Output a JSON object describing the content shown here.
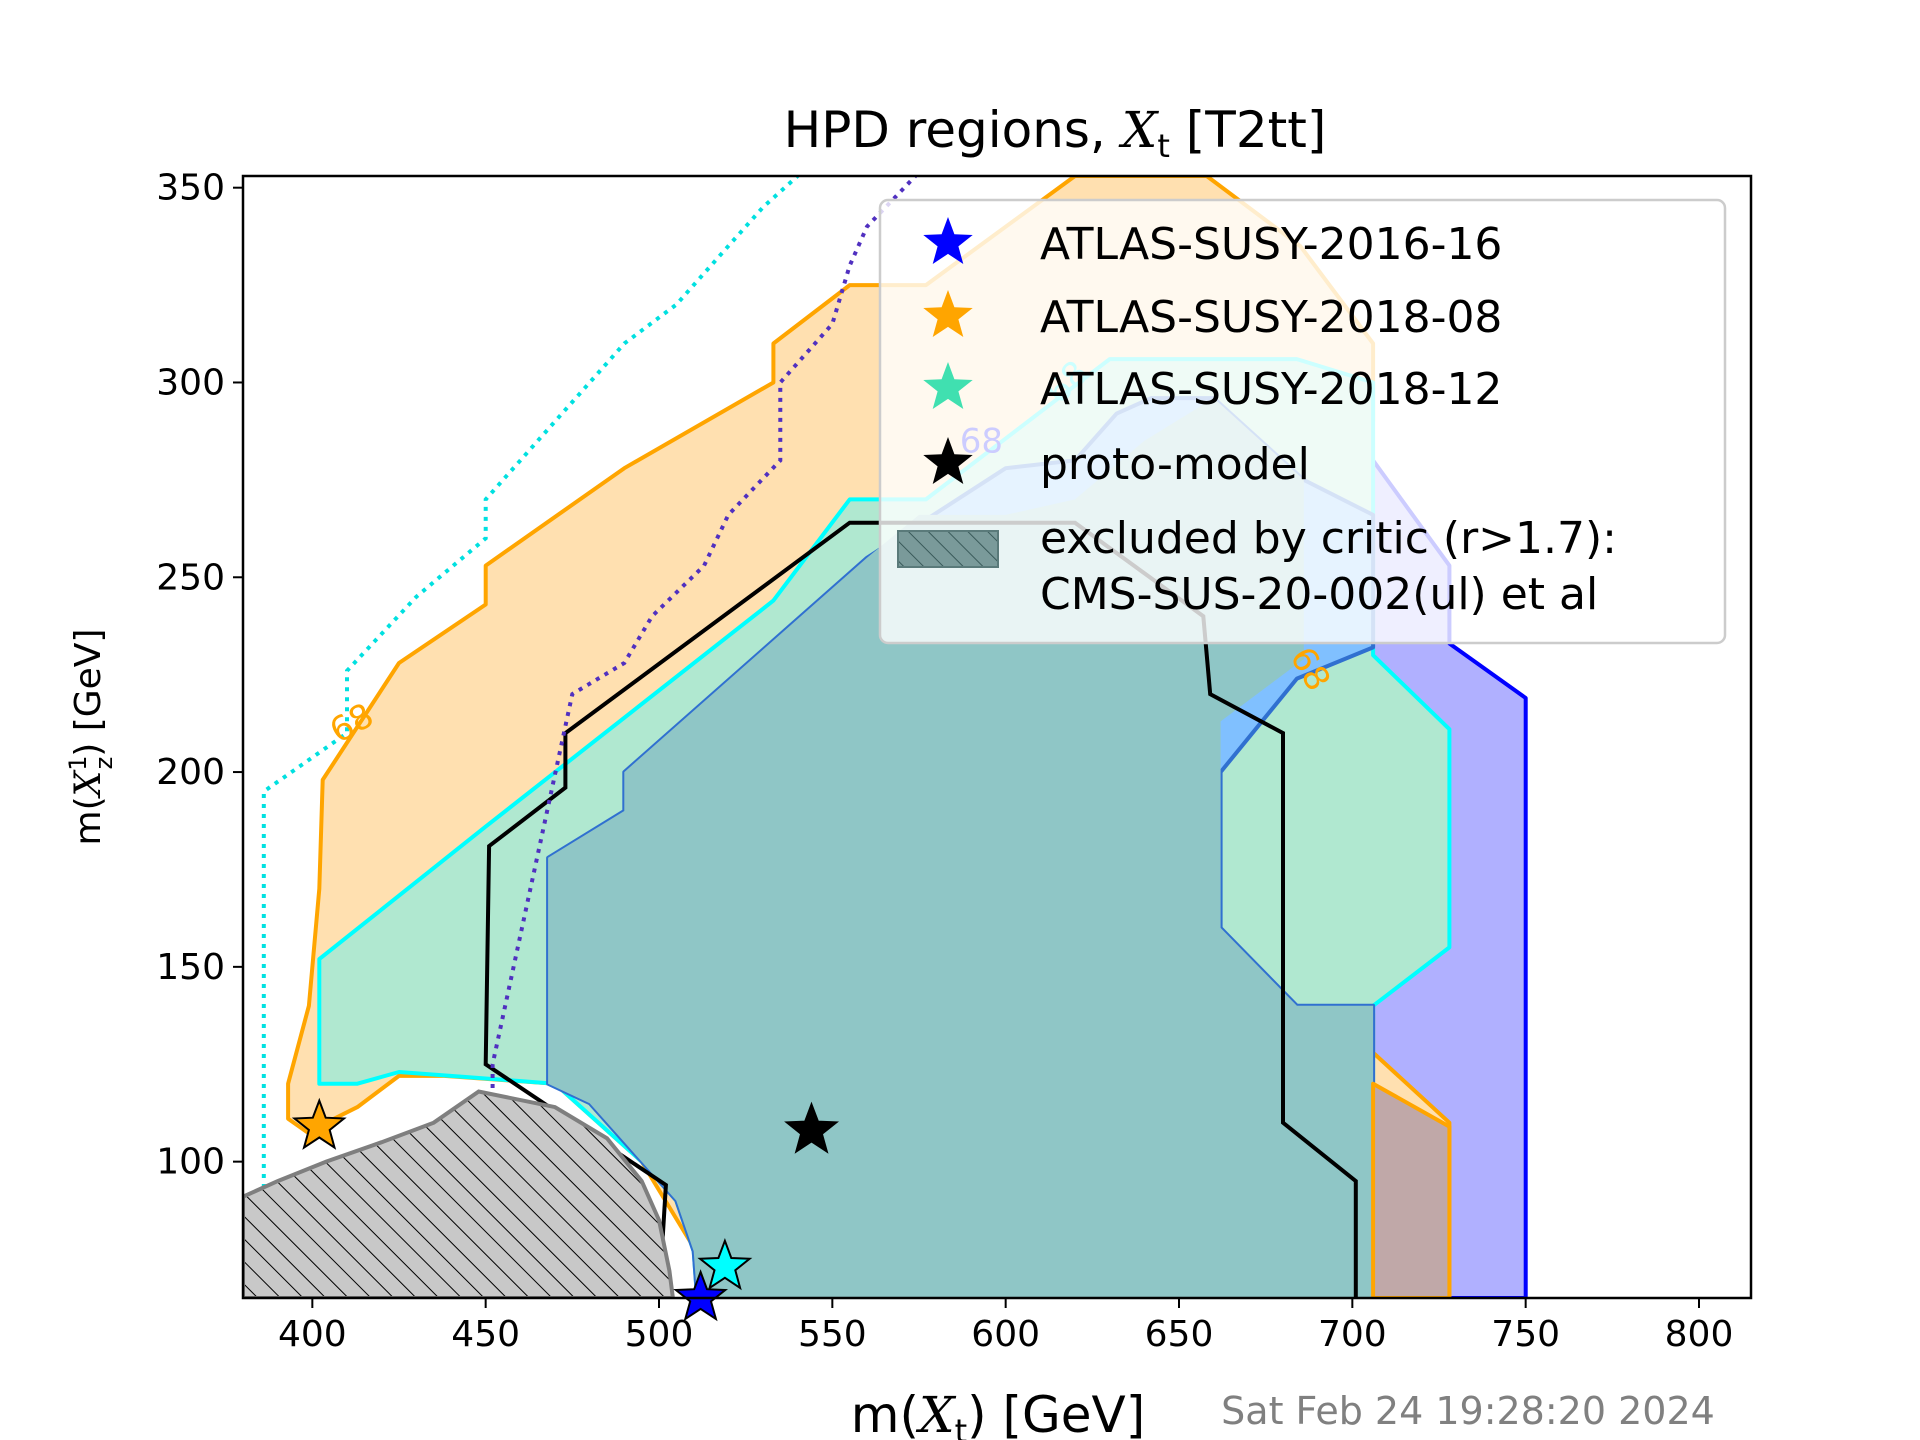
{
  "chart_data": {
    "type": "contour",
    "title": "HPD regions, X_t [T2tt]",
    "title_parts": {
      "pre": "HPD regions, ",
      "italic": "X",
      "sub": "t",
      "post": " [T2tt]"
    },
    "xlabel": "m(X_t) [GeV]",
    "xlabel_parts": {
      "pre": "m(",
      "italic": "X",
      "sub": "t",
      "post": ") [GeV]"
    },
    "ylabel": "m(X_z^1) [GeV]",
    "ylabel_parts": {
      "pre": "m(",
      "italic": "X",
      "sub": "z",
      "sup": "1",
      "post": ") [GeV]"
    },
    "xlim": [
      380,
      815
    ],
    "ylim": [
      65,
      353
    ],
    "xticks": [
      "400",
      "450",
      "500",
      "550",
      "600",
      "650",
      "700",
      "750",
      "800"
    ],
    "yticks": [
      "100",
      "150",
      "200",
      "250",
      "300",
      "350"
    ],
    "timestamp": "Sat Feb 24 19:28:20 2024",
    "contour_level_label": "68",
    "legend": {
      "position": "upper right",
      "entries": [
        {
          "label": "ATLAS-SUSY-2016-16",
          "marker": "star",
          "color": "#0000ff"
        },
        {
          "label": "ATLAS-SUSY-2018-08",
          "marker": "star",
          "color": "#ffa500"
        },
        {
          "label": "ATLAS-SUSY-2018-12",
          "marker": "star",
          "color": "#40e0b0"
        },
        {
          "label": "proto-model",
          "marker": "star",
          "color": "#000000"
        },
        {
          "label": "excluded by critic (r>1.7):",
          "label2": "CMS-SUS-20-002(ul) et al",
          "marker": "hatch",
          "color": "#7a9a9a"
        }
      ]
    },
    "series": [
      {
        "kind": "region",
        "fill": "#b0b0ff",
        "stroke": "#0000ff",
        "points": [
          [
            620,
            280
          ],
          [
            660,
            295
          ],
          [
            690,
            285
          ],
          [
            706,
            280
          ],
          [
            728,
            253
          ],
          [
            728,
            233
          ],
          [
            750,
            219
          ],
          [
            750,
            65
          ],
          [
            706,
            65
          ],
          [
            706,
            120
          ],
          [
            590,
            170
          ],
          [
            470,
            180
          ],
          [
            470,
            215
          ],
          [
            620,
            280
          ]
        ]
      },
      {
        "kind": "region",
        "fill": "#ffe0b0",
        "stroke": "#ffa500",
        "points": [
          [
            393,
            111
          ],
          [
            401,
            106
          ],
          [
            404,
            110
          ],
          [
            413,
            114
          ],
          [
            425,
            122
          ],
          [
            438,
            122
          ],
          [
            470,
            120
          ],
          [
            495,
            100
          ],
          [
            510,
            78
          ],
          [
            520,
            75
          ],
          [
            520,
            65
          ],
          [
            728,
            65
          ],
          [
            728,
            110
          ],
          [
            706,
            128
          ],
          [
            706,
            138
          ],
          [
            684,
            140
          ],
          [
            662,
            160
          ],
          [
            662,
            213
          ],
          [
            684,
            229
          ],
          [
            684,
            280
          ],
          [
            706,
            290
          ],
          [
            706,
            310
          ],
          [
            685,
            335
          ],
          [
            658,
            353
          ],
          [
            620,
            353
          ],
          [
            577,
            325
          ],
          [
            555,
            325
          ],
          [
            533,
            310
          ],
          [
            533,
            300
          ],
          [
            490,
            278
          ],
          [
            450,
            253
          ],
          [
            450,
            243
          ],
          [
            425,
            228
          ],
          [
            403,
            198
          ],
          [
            402,
            170
          ],
          [
            399,
            140
          ],
          [
            393,
            120
          ]
        ]
      },
      {
        "kind": "region",
        "fill": "#b0e8d0",
        "stroke": "#00ffff",
        "points": [
          [
            402,
            120
          ],
          [
            402,
            152
          ],
          [
            450,
            186
          ],
          [
            533,
            244
          ],
          [
            555,
            270
          ],
          [
            577,
            270
          ],
          [
            630,
            306
          ],
          [
            684,
            306
          ],
          [
            706,
            300
          ],
          [
            706,
            230
          ],
          [
            728,
            211
          ],
          [
            728,
            155
          ],
          [
            706,
            140
          ],
          [
            706,
            65
          ],
          [
            511,
            65
          ],
          [
            510,
            77
          ],
          [
            505,
            90
          ],
          [
            495,
            100
          ],
          [
            470,
            120
          ],
          [
            425,
            123
          ],
          [
            413,
            120
          ]
        ]
      },
      {
        "kind": "region",
        "fill": "#80c0ff",
        "stroke": "#3070d0",
        "points": [
          [
            468,
            120
          ],
          [
            468,
            178
          ],
          [
            490,
            190
          ],
          [
            490,
            200
          ],
          [
            560,
            255
          ],
          [
            600,
            278
          ],
          [
            620,
            280
          ],
          [
            632,
            292
          ],
          [
            642,
            296
          ],
          [
            660,
            296
          ],
          [
            686,
            275
          ],
          [
            706,
            266
          ],
          [
            706,
            232
          ],
          [
            684,
            224
          ],
          [
            662,
            200
          ],
          [
            662,
            160
          ],
          [
            684,
            140
          ],
          [
            706,
            140
          ],
          [
            706,
            65
          ],
          [
            511,
            65
          ],
          [
            510,
            77
          ],
          [
            505,
            90
          ],
          [
            495,
            100
          ],
          [
            480,
            115
          ]
        ]
      },
      {
        "kind": "region",
        "fill": "#8fc6c6",
        "stroke": "none",
        "points": [
          [
            468,
            120
          ],
          [
            468,
            178
          ],
          [
            490,
            190
          ],
          [
            490,
            200
          ],
          [
            560,
            255
          ],
          [
            575,
            266
          ],
          [
            600,
            266
          ],
          [
            620,
            270
          ],
          [
            640,
            285
          ],
          [
            660,
            296
          ],
          [
            686,
            275
          ],
          [
            686,
            229
          ],
          [
            662,
            213
          ],
          [
            662,
            160
          ],
          [
            684,
            140
          ],
          [
            706,
            140
          ],
          [
            706,
            65
          ],
          [
            511,
            65
          ],
          [
            510,
            77
          ],
          [
            505,
            90
          ],
          [
            495,
            100
          ],
          [
            480,
            115
          ]
        ]
      },
      {
        "kind": "region",
        "fill": "#c0a8a8",
        "stroke": "#ffa500",
        "points": [
          [
            706,
            120
          ],
          [
            728,
            109
          ],
          [
            728,
            65
          ],
          [
            706,
            65
          ]
        ]
      },
      {
        "kind": "line",
        "stroke": "#000000",
        "width": 4,
        "points": [
          [
            500,
            65
          ],
          [
            502,
            94
          ],
          [
            450,
            125
          ],
          [
            451,
            181
          ],
          [
            473,
            196
          ],
          [
            473,
            210
          ],
          [
            555,
            264
          ],
          [
            620,
            264
          ],
          [
            657,
            240
          ],
          [
            659,
            220
          ],
          [
            680,
            210
          ],
          [
            680,
            110
          ],
          [
            701,
            95
          ],
          [
            701,
            65
          ]
        ]
      },
      {
        "kind": "dotted",
        "stroke": "#00e0e0",
        "points": [
          [
            386,
            65
          ],
          [
            386,
            195
          ],
          [
            410,
            210
          ],
          [
            410,
            226
          ],
          [
            430,
            245
          ],
          [
            450,
            260
          ],
          [
            450,
            270
          ],
          [
            470,
            290
          ],
          [
            480,
            300
          ],
          [
            490,
            310
          ],
          [
            505,
            320
          ],
          [
            520,
            335
          ],
          [
            530,
            345
          ],
          [
            540,
            353
          ]
        ]
      },
      {
        "kind": "dotted",
        "stroke": "#5030c0",
        "points": [
          [
            452,
            65
          ],
          [
            452,
            125
          ],
          [
            475,
            220
          ],
          [
            490,
            228
          ],
          [
            498,
            240
          ],
          [
            513,
            253
          ],
          [
            520,
            266
          ],
          [
            535,
            280
          ],
          [
            535,
            300
          ],
          [
            550,
            315
          ],
          [
            555,
            330
          ],
          [
            560,
            340
          ],
          [
            574,
            353
          ]
        ]
      },
      {
        "kind": "excluded",
        "fill": "#c8c8c8",
        "stroke": "#7f7f7f",
        "points": [
          [
            380,
            65
          ],
          [
            380,
            91
          ],
          [
            390,
            95
          ],
          [
            404,
            100
          ],
          [
            420,
            105
          ],
          [
            435,
            110
          ],
          [
            448,
            118
          ],
          [
            470,
            114
          ],
          [
            485,
            106
          ],
          [
            495,
            95
          ],
          [
            500,
            85
          ],
          [
            503,
            72
          ],
          [
            504,
            65
          ]
        ]
      }
    ],
    "markers": [
      {
        "name": "ATLAS-SUSY-2016-16",
        "x": 512,
        "y": 65,
        "color": "#0000ff"
      },
      {
        "name": "ATLAS-SUSY-2018-08",
        "x": 402,
        "y": 109,
        "color": "#ffa500"
      },
      {
        "name": "ATLAS-SUSY-2018-12",
        "x": 519,
        "y": 73,
        "color": "#00ffff"
      },
      {
        "name": "proto-model",
        "x": 544,
        "y": 108,
        "color": "#000000"
      }
    ]
  }
}
